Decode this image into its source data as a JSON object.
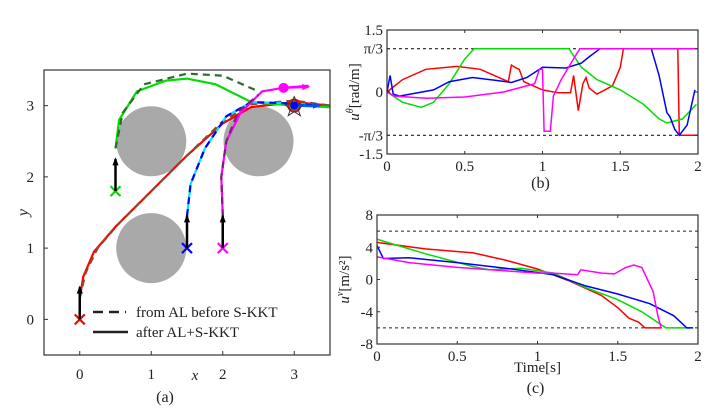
{
  "chart_data": [
    {
      "panel": "a",
      "type": "line",
      "caption": "(a)",
      "xlabel": "x",
      "ylabel": "y",
      "xlim": [
        -0.5,
        3.5
      ],
      "ylim": [
        -0.5,
        3.5
      ],
      "xticks": [
        "0",
        "1",
        "2",
        "3"
      ],
      "yticks": [
        "0",
        "1",
        "2",
        "3"
      ],
      "legend": {
        "placement": "bottom-right",
        "entries": [
          {
            "label": "from AL before S-KKT",
            "style": "dashed"
          },
          {
            "label": "after AL+S-KKT",
            "style": "solid"
          }
        ]
      },
      "obstacles": [
        {
          "cx": 1,
          "cy": 2.5,
          "r": 0.5
        },
        {
          "cx": 2.5,
          "cy": 2.5,
          "r": 0.5
        },
        {
          "cx": 1,
          "cy": 1,
          "r": 0.5
        }
      ],
      "obstacle_color": "#a9a9a9",
      "agents": [
        {
          "color": "#ff0000",
          "dash_color": "#8b4a2b",
          "start": [
            0,
            0
          ],
          "arrow_to": [
            0,
            0.45
          ],
          "solid": [
            [
              0,
              0.3
            ],
            [
              0.05,
              0.6
            ],
            [
              0.2,
              0.95
            ],
            [
              0.5,
              1.3
            ],
            [
              1,
              1.8
            ],
            [
              1.5,
              2.3
            ],
            [
              2,
              2.75
            ],
            [
              2.4,
              2.98
            ],
            [
              3,
              3.05
            ],
            [
              3.5,
              3.0
            ]
          ],
          "dashed": [
            [
              0,
              0.3
            ],
            [
              0.08,
              0.65
            ],
            [
              0.25,
              1.0
            ],
            [
              0.55,
              1.35
            ],
            [
              1,
              1.8
            ],
            [
              1.5,
              2.3
            ],
            [
              2,
              2.78
            ],
            [
              2.4,
              3.02
            ],
            [
              3,
              3.07
            ],
            [
              3.5,
              3.0
            ]
          ]
        },
        {
          "color": "#00dd00",
          "dash_color": "#2e6b2e",
          "start": [
            0.5,
            1.8
          ],
          "arrow_to": [
            0.5,
            2.25
          ],
          "solid": [
            [
              0.5,
              2.4
            ],
            [
              0.55,
              2.8
            ],
            [
              0.8,
              3.2
            ],
            [
              1.2,
              3.35
            ],
            [
              1.5,
              3.38
            ],
            [
              1.9,
              3.3
            ],
            [
              2.4,
              3.05
            ],
            [
              3,
              3.0
            ],
            [
              3.5,
              2.98
            ]
          ],
          "dashed": [
            [
              0.5,
              2.4
            ],
            [
              0.6,
              2.9
            ],
            [
              0.9,
              3.3
            ],
            [
              1.5,
              3.45
            ],
            [
              2,
              3.42
            ],
            [
              2.5,
              3.2
            ]
          ]
        },
        {
          "color": "#00e5ff",
          "dash_color": "#0000ff",
          "start": [
            1.5,
            1
          ],
          "arrow_to": [
            1.5,
            1.45
          ],
          "solid": [
            [
              1.5,
              1.45
            ],
            [
              1.55,
              1.9
            ],
            [
              1.75,
              2.4
            ],
            [
              2.05,
              2.85
            ],
            [
              2.4,
              3.05
            ],
            [
              3,
              3.03
            ],
            [
              3.3,
              3.0
            ]
          ],
          "dashed": [
            [
              1.5,
              1.45
            ],
            [
              1.55,
              1.9
            ],
            [
              1.75,
              2.4
            ],
            [
              2.05,
              2.85
            ],
            [
              2.4,
              3.05
            ],
            [
              3,
              3.03
            ],
            [
              3.3,
              3.0
            ]
          ]
        },
        {
          "color": "#ff00ff",
          "dash_color": "#7a1f7a",
          "start": [
            2,
            1
          ],
          "arrow_to": [
            2,
            1.45
          ],
          "solid": [
            [
              2,
              1.45
            ],
            [
              1.98,
              2.0
            ],
            [
              2.05,
              2.5
            ],
            [
              2.25,
              2.9
            ],
            [
              2.55,
              3.2
            ],
            [
              2.85,
              3.25
            ],
            [
              3.2,
              3.28
            ]
          ],
          "dashed": [
            [
              2,
              1.45
            ],
            [
              1.98,
              2.0
            ],
            [
              2.05,
              2.5
            ],
            [
              2.22,
              2.92
            ],
            [
              2.5,
              3.15
            ]
          ]
        }
      ],
      "goal_marker": [
        3,
        3
      ]
    },
    {
      "panel": "b",
      "type": "line",
      "caption": "(b)",
      "ylabel": "u^θ[rad/m]",
      "ylabel_main": "u",
      "ylabel_sup": "θ",
      "ylabel_unit": "[rad/m]",
      "xlim": [
        0,
        2
      ],
      "ylim": [
        -1.5,
        1.5
      ],
      "xticks": [
        "0",
        "0.5",
        "1",
        "1.5",
        "2"
      ],
      "yticks": [
        {
          "value": 1.5,
          "label": "1.5"
        },
        {
          "value": 1.0472,
          "label": "π/3"
        },
        {
          "value": 0,
          "label": "0"
        },
        {
          "value": -1.0472,
          "label": "-π/3"
        },
        {
          "value": -1.5,
          "label": "-1.5"
        }
      ],
      "bounds": [
        1.0472,
        -1.0472
      ],
      "series": [
        {
          "color": "#ff0000",
          "points": [
            [
              0,
              0
            ],
            [
              0.1,
              0.3
            ],
            [
              0.25,
              0.55
            ],
            [
              0.45,
              0.62
            ],
            [
              0.6,
              0.55
            ],
            [
              0.78,
              0.25
            ],
            [
              0.8,
              0.65
            ],
            [
              0.83,
              0.58
            ],
            [
              0.85,
              0.55
            ],
            [
              0.88,
              0.25
            ],
            [
              1,
              0.05
            ],
            [
              1.1,
              -0.02
            ],
            [
              1.18,
              -0.02
            ],
            [
              1.2,
              0.4
            ],
            [
              1.23,
              -0.45
            ],
            [
              1.26,
              0.2
            ],
            [
              1.28,
              0.35
            ],
            [
              1.3,
              0.1
            ],
            [
              1.35,
              -0.05
            ],
            [
              1.45,
              0.15
            ],
            [
              1.5,
              0.6
            ],
            [
              1.52,
              1.047
            ],
            [
              1.87,
              1.047
            ],
            [
              1.88,
              -1.047
            ],
            [
              2,
              -1.047
            ]
          ]
        },
        {
          "color": "#00dd00",
          "points": [
            [
              0,
              0
            ],
            [
              0.1,
              -0.25
            ],
            [
              0.22,
              -0.37
            ],
            [
              0.3,
              -0.25
            ],
            [
              0.4,
              0.2
            ],
            [
              0.5,
              0.8
            ],
            [
              0.56,
              1.047
            ],
            [
              1.17,
              1.047
            ],
            [
              1.25,
              0.6
            ],
            [
              1.35,
              0.3
            ],
            [
              1.5,
              0.05
            ],
            [
              1.65,
              -0.3
            ],
            [
              1.75,
              -0.65
            ],
            [
              1.8,
              -0.75
            ],
            [
              1.9,
              -0.65
            ],
            [
              1.99,
              -0.3
            ]
          ]
        },
        {
          "color": "#0000ff",
          "points": [
            [
              0,
              0
            ],
            [
              0.02,
              0.4
            ],
            [
              0.04,
              -0.05
            ],
            [
              0.08,
              -0.1
            ],
            [
              0.15,
              -0.05
            ],
            [
              0.3,
              0.05
            ],
            [
              0.4,
              0.25
            ],
            [
              0.55,
              0.35
            ],
            [
              0.7,
              0.28
            ],
            [
              0.8,
              0.23
            ],
            [
              0.9,
              0.35
            ],
            [
              1,
              0.6
            ],
            [
              1.15,
              0.58
            ],
            [
              1.25,
              0.7
            ],
            [
              1.3,
              0.85
            ],
            [
              1.37,
              1.047
            ],
            [
              1.7,
              1.047
            ],
            [
              1.75,
              0.4
            ],
            [
              1.8,
              -0.5
            ],
            [
              1.82,
              -0.6
            ],
            [
              1.85,
              -0.9
            ],
            [
              1.88,
              -1.047
            ],
            [
              1.93,
              -0.8
            ],
            [
              1.98,
              0.05
            ]
          ]
        },
        {
          "color": "#ff00ff",
          "points": [
            [
              0,
              0
            ],
            [
              0.05,
              -0.1
            ],
            [
              0.25,
              -0.15
            ],
            [
              0.5,
              -0.12
            ],
            [
              0.75,
              0.0
            ],
            [
              0.95,
              0.2
            ],
            [
              0.98,
              0.55
            ],
            [
              1.0,
              0.55
            ],
            [
              1.01,
              -0.95
            ],
            [
              1.05,
              -0.95
            ],
            [
              1.07,
              -0.1
            ],
            [
              1.12,
              0.3
            ],
            [
              1.2,
              0.8
            ],
            [
              1.24,
              1.047
            ],
            [
              2,
              1.047
            ]
          ]
        }
      ]
    },
    {
      "panel": "c",
      "type": "line",
      "caption": "(c)",
      "xlabel": "Time[s]",
      "ylabel": "u^v[m/s^2]",
      "ylabel_main": "u",
      "ylabel_sup": "v",
      "ylabel_unit": "[m/s²]",
      "xlim": [
        0,
        2
      ],
      "ylim": [
        -8,
        8
      ],
      "xticks": [
        "0",
        "0.5",
        "1",
        "1.5",
        "2"
      ],
      "yticks": [
        {
          "value": 8,
          "label": "8"
        },
        {
          "value": 4,
          "label": "4"
        },
        {
          "value": 0,
          "label": "0"
        },
        {
          "value": -4,
          "label": "-4"
        },
        {
          "value": -8,
          "label": "-8"
        }
      ],
      "bounds": [
        6,
        -6
      ],
      "series": [
        {
          "color": "#ff0000",
          "points": [
            [
              0,
              4.6
            ],
            [
              0.3,
              3.8
            ],
            [
              0.6,
              3.3
            ],
            [
              0.8,
              2.4
            ],
            [
              1,
              1.3
            ],
            [
              1.2,
              -0.2
            ],
            [
              1.4,
              -2.0
            ],
            [
              1.5,
              -3.5
            ],
            [
              1.57,
              -4.8
            ],
            [
              1.63,
              -5.3
            ],
            [
              1.67,
              -6
            ],
            [
              1.77,
              -6
            ]
          ]
        },
        {
          "color": "#00dd00",
          "points": [
            [
              0,
              5
            ],
            [
              0.3,
              3.2
            ],
            [
              0.6,
              1.6
            ],
            [
              0.7,
              1.2
            ],
            [
              0.9,
              1.4
            ],
            [
              1.1,
              0.8
            ],
            [
              1.3,
              -1
            ],
            [
              1.5,
              -2.5
            ],
            [
              1.65,
              -4
            ],
            [
              1.8,
              -6
            ],
            [
              1.95,
              -6
            ]
          ]
        },
        {
          "color": "#0000ff",
          "points": [
            [
              0,
              4.2
            ],
            [
              0.04,
              2.6
            ],
            [
              0.2,
              2.7
            ],
            [
              0.5,
              2.1
            ],
            [
              0.8,
              1.4
            ],
            [
              1.1,
              0.6
            ],
            [
              1.3,
              -0.8
            ],
            [
              1.5,
              -1.8
            ],
            [
              1.7,
              -3.0
            ],
            [
              1.85,
              -4.5
            ],
            [
              1.93,
              -6
            ],
            [
              1.97,
              -6
            ]
          ]
        },
        {
          "color": "#ff00ff",
          "points": [
            [
              0,
              2.8
            ],
            [
              0.2,
              2.1
            ],
            [
              0.5,
              1.5
            ],
            [
              1,
              0.8
            ],
            [
              1.1,
              0.8
            ],
            [
              1.25,
              0.6
            ],
            [
              1.27,
              1.2
            ],
            [
              1.4,
              0.8
            ],
            [
              1.48,
              0.7
            ],
            [
              1.55,
              1.5
            ],
            [
              1.6,
              1.8
            ],
            [
              1.65,
              1.5
            ],
            [
              1.72,
              -1.5
            ],
            [
              1.75,
              -4.5
            ],
            [
              1.77,
              -6
            ]
          ]
        }
      ]
    }
  ]
}
